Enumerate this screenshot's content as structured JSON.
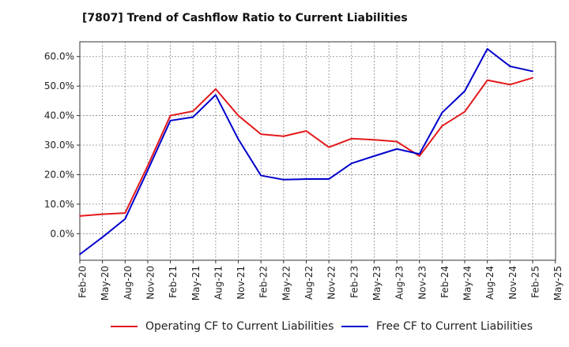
{
  "title": "[7807]  Trend of Cashflow Ratio to Current Liabilities",
  "chart_data": {
    "type": "line",
    "title": "[7807]  Trend of Cashflow Ratio to Current Liabilities",
    "xlabel": "",
    "ylabel": "",
    "x_tick_labels": [
      "Feb-20",
      "May-20",
      "Aug-20",
      "Nov-20",
      "Feb-21",
      "May-21",
      "Aug-21",
      "Nov-21",
      "Feb-22",
      "May-22",
      "Aug-22",
      "Nov-22",
      "Feb-23",
      "May-23",
      "Aug-23",
      "Nov-23",
      "Feb-24",
      "May-24",
      "Aug-24",
      "Nov-24",
      "Feb-25",
      "May-25"
    ],
    "y_tick_labels": [
      "0.0%",
      "10.0%",
      "20.0%",
      "30.0%",
      "40.0%",
      "50.0%",
      "60.0%"
    ],
    "y_ticks": [
      0,
      10,
      20,
      30,
      40,
      50,
      60
    ],
    "ylim": [
      -9,
      65
    ],
    "grid": true,
    "legend_position": "bottom",
    "series": [
      {
        "name": "Operating CF to Current Liabilities",
        "color": "#e31a1c",
        "x": [
          "Feb-20",
          "May-20",
          "Aug-20",
          "Nov-20",
          "Feb-21",
          "May-21",
          "Aug-21",
          "Nov-21",
          "Feb-22",
          "May-22",
          "Aug-22",
          "Nov-22",
          "Feb-23",
          "May-23",
          "Aug-23",
          "Nov-23",
          "Feb-24",
          "May-24",
          "Aug-24",
          "Nov-24",
          "Feb-25"
        ],
        "values": [
          6.0,
          6.6,
          7.0,
          23.0,
          40.0,
          41.5,
          49.0,
          40.0,
          33.7,
          33.0,
          34.8,
          29.3,
          32.2,
          31.8,
          31.2,
          26.3,
          36.5,
          41.3,
          52.0,
          50.5,
          52.8
        ]
      },
      {
        "name": "Free CF to Current Liabilities",
        "color": "#0000cc",
        "x": [
          "Feb-20",
          "May-20",
          "Aug-20",
          "Nov-20",
          "Feb-21",
          "May-21",
          "Aug-21",
          "Nov-21",
          "Feb-22",
          "May-22",
          "Aug-22",
          "Nov-22",
          "Feb-23",
          "May-23",
          "Aug-23",
          "Nov-23",
          "Feb-24",
          "May-24",
          "Aug-24",
          "Nov-24",
          "Feb-25"
        ],
        "values": [
          -7.0,
          -1.2,
          5.0,
          21.5,
          38.3,
          39.5,
          47.0,
          32.0,
          19.7,
          18.3,
          18.5,
          18.5,
          23.8,
          26.3,
          28.7,
          27.0,
          41.0,
          48.3,
          62.6,
          56.7,
          55.0
        ]
      }
    ]
  }
}
